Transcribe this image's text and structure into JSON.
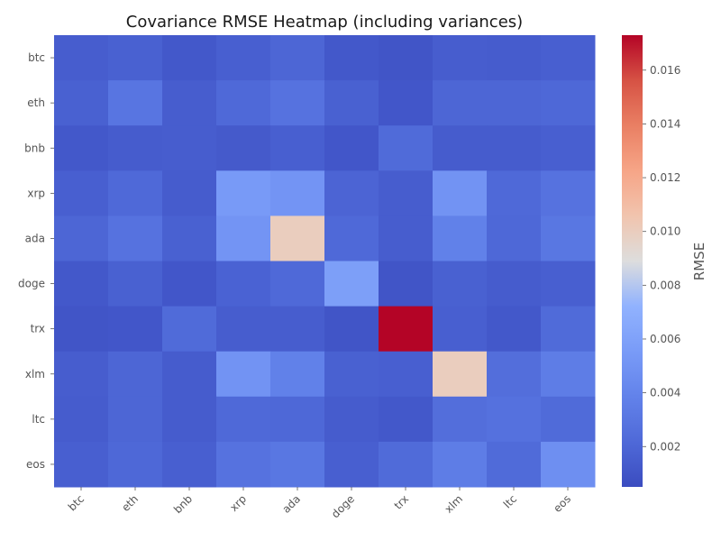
{
  "chart_data": {
    "type": "heatmap",
    "title": "Covariance RMSE Heatmap (including variances)",
    "xlabel": "",
    "ylabel": "",
    "row_labels": [
      "btc",
      "eth",
      "bnb",
      "xrp",
      "ada",
      "doge",
      "trx",
      "xlm",
      "ltc",
      "eos"
    ],
    "col_labels": [
      "btc",
      "eth",
      "bnb",
      "xrp",
      "ada",
      "doge",
      "trx",
      "xlm",
      "ltc",
      "eos"
    ],
    "values": [
      [
        0.0015,
        0.0017,
        0.0012,
        0.0016,
        0.002,
        0.0012,
        0.001,
        0.0015,
        0.0014,
        0.0016
      ],
      [
        0.0017,
        0.003,
        0.0015,
        0.0022,
        0.0028,
        0.0017,
        0.0011,
        0.002,
        0.002,
        0.0021
      ],
      [
        0.0012,
        0.0014,
        0.0015,
        0.0013,
        0.0016,
        0.0011,
        0.0023,
        0.0014,
        0.0014,
        0.0016
      ],
      [
        0.0016,
        0.0022,
        0.0014,
        0.0055,
        0.0051,
        0.0019,
        0.0015,
        0.005,
        0.0022,
        0.0028
      ],
      [
        0.002,
        0.0028,
        0.0017,
        0.0051,
        0.01,
        0.0022,
        0.0015,
        0.0038,
        0.0021,
        0.0031
      ],
      [
        0.0012,
        0.0017,
        0.0011,
        0.0018,
        0.0022,
        0.0058,
        0.001,
        0.0017,
        0.0014,
        0.0016
      ],
      [
        0.001,
        0.0011,
        0.0023,
        0.0015,
        0.0015,
        0.001,
        0.0173,
        0.0016,
        0.0012,
        0.0023
      ],
      [
        0.0015,
        0.002,
        0.0014,
        0.005,
        0.0038,
        0.0017,
        0.0016,
        0.01,
        0.0025,
        0.0035
      ],
      [
        0.0014,
        0.002,
        0.0014,
        0.0022,
        0.0021,
        0.0014,
        0.0012,
        0.0025,
        0.0027,
        0.0023
      ],
      [
        0.0016,
        0.0021,
        0.0016,
        0.0028,
        0.0031,
        0.0016,
        0.0023,
        0.0035,
        0.0023,
        0.0047
      ]
    ],
    "colorbar": {
      "label": "RMSE",
      "vmin": 0.0005,
      "vmax": 0.0173,
      "ticks": [
        0.002,
        0.004,
        0.006,
        0.008,
        0.01,
        0.012,
        0.014,
        0.016
      ],
      "tick_labels": [
        "0.002",
        "0.004",
        "0.006",
        "0.008",
        "0.010",
        "0.012",
        "0.014",
        "0.016"
      ],
      "colormap": "coolwarm"
    },
    "colors": {
      "low": "#3b4cc0",
      "mid": "#dddddd",
      "high": "#b40426"
    },
    "grid": false,
    "legend": "colorbar-right"
  }
}
